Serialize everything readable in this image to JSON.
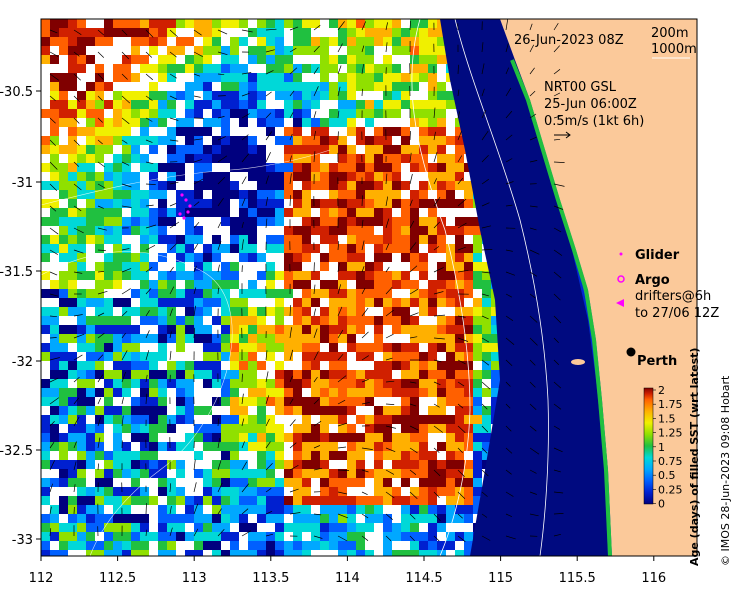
{
  "map": {
    "timestamp": "26-Jun-2023 08Z",
    "scale_labels": [
      "200m",
      "1000m"
    ],
    "current_source": "NRT00 GSL",
    "current_time": "25-Jun 06:00Z",
    "current_scale": "0.5m/s (1kt 6h)",
    "extent": {
      "lon": [
        112,
        116.2
      ],
      "lat": [
        -33.1,
        -30.05
      ]
    },
    "x_ticks": [
      "112",
      "112.5",
      "113",
      "113.5",
      "114",
      "114.5",
      "115",
      "115.5",
      "116"
    ],
    "y_ticks": [
      "-30.5",
      "-31",
      "-31.5",
      "-32",
      "-32.5",
      "-33"
    ]
  },
  "legend": {
    "glider": "Glider",
    "argo": "Argo",
    "drifters_line1": "drifters@6h",
    "drifters_line2": "to 27/06 12Z",
    "city": "Perth"
  },
  "colorbar": {
    "title": "Age (days) of filled SST (wrt latest)",
    "ticks": [
      "2",
      "1.75",
      "1.5",
      "1.25",
      "1",
      "0.75",
      "0.5",
      "0.25",
      "0"
    ],
    "colors": [
      "#00007f",
      "#0020d0",
      "#0060ff",
      "#00a8ff",
      "#00d8d8",
      "#20c040",
      "#90e000",
      "#f0f000",
      "#ffb000",
      "#ff6000",
      "#d02000",
      "#800000"
    ]
  },
  "credit": "© IMOS 28-Jun-2023 09:08 Hobart",
  "colors": {
    "land": "#fbc99a",
    "deep_ocean": "#000a80",
    "glider_marker": "#ff00ff",
    "frame": "#000000"
  }
}
